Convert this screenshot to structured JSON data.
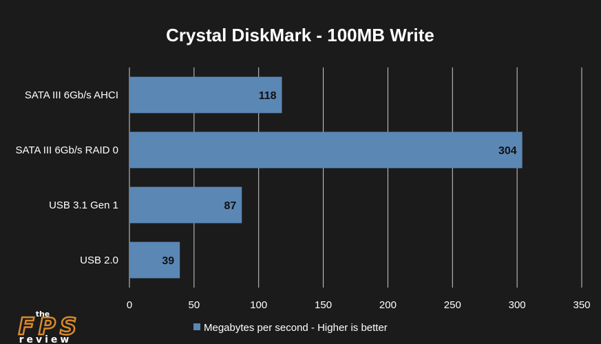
{
  "chart_data": {
    "type": "bar",
    "orientation": "horizontal",
    "title": "Crystal DiskMark - 100MB Write",
    "categories": [
      "SATA III 6Gb/s AHCI",
      "SATA III 6Gb/s RAID 0",
      "USB 3.1 Gen 1",
      "USB 2.0"
    ],
    "series": [
      {
        "name": "Megabytes per second - Higher is better",
        "values": [
          118,
          304,
          87,
          39
        ]
      }
    ],
    "xlim": [
      0,
      350
    ],
    "xticks": [
      0,
      50,
      100,
      150,
      200,
      250,
      300,
      350
    ],
    "grid": true,
    "legend_position": "bottom",
    "colors": {
      "background": "#1b1b1b",
      "bar": "#5b87b5",
      "grid": "#d0d0d0",
      "text": "#ffffff"
    }
  },
  "logo": {
    "top": "the",
    "main": "FPS",
    "bottom": "review"
  }
}
